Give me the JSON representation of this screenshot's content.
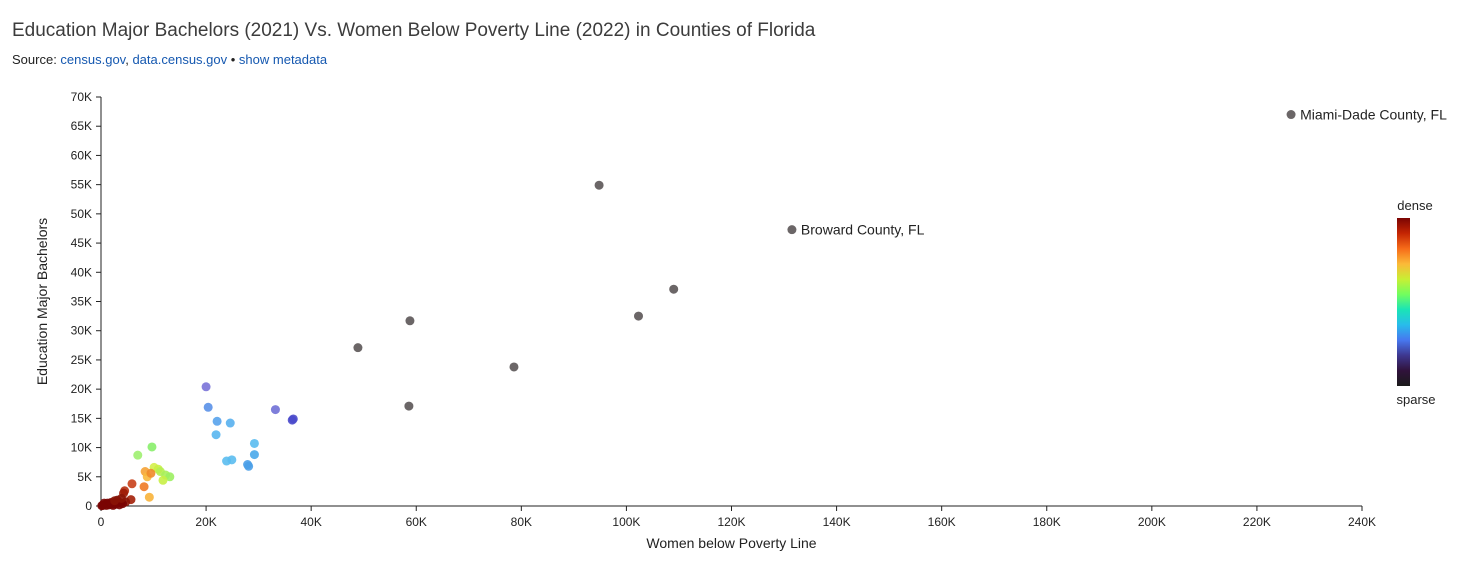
{
  "title": "Education Major Bachelors (2021) Vs. Women Below Poverty Line (2022) in Counties of Florida",
  "source": {
    "prefix": "Source: ",
    "link1": "census.gov",
    "sep1": ", ",
    "link2": "data.census.gov",
    "sep2": " • ",
    "link3": "show metadata"
  },
  "chart_data": {
    "type": "scatter",
    "xlabel": "Women below Poverty Line",
    "ylabel": "Education Major Bachelors",
    "xlim": [
      0,
      240000
    ],
    "ylim": [
      0,
      70000
    ],
    "x_ticks": [
      0,
      20000,
      40000,
      60000,
      80000,
      100000,
      120000,
      140000,
      160000,
      180000,
      200000,
      220000,
      240000
    ],
    "x_tick_labels": [
      "0",
      "20K",
      "40K",
      "60K",
      "80K",
      "100K",
      "120K",
      "140K",
      "160K",
      "180K",
      "200K",
      "220K",
      "240K"
    ],
    "y_ticks": [
      0,
      5000,
      10000,
      15000,
      20000,
      25000,
      30000,
      35000,
      40000,
      45000,
      50000,
      55000,
      60000,
      65000,
      70000
    ],
    "y_tick_labels": [
      "0",
      "5K",
      "10K",
      "15K",
      "20K",
      "25K",
      "30K",
      "35K",
      "40K",
      "45K",
      "50K",
      "55K",
      "60K",
      "65K",
      "70K"
    ],
    "grid": false,
    "legend": {
      "type": "colorbar",
      "placement": "right",
      "top_label": "dense",
      "bottom_label": "sparse",
      "colors": [
        "#7a0403",
        "#c42503",
        "#f66b19",
        "#fbb938",
        "#c8ef34",
        "#72fe5e",
        "#1ae4b6",
        "#28bceb",
        "#4777ef",
        "#3e378f",
        "#30123b",
        "#1a1a1a"
      ]
    },
    "annotations": [
      {
        "x": 226500,
        "y": 67000,
        "text": "Miami-Dade County, FL"
      },
      {
        "x": 131500,
        "y": 47300,
        "text": "Broward County, FL"
      }
    ],
    "points": [
      {
        "x": 226500,
        "y": 67000,
        "color": "#5b5556"
      },
      {
        "x": 131500,
        "y": 47300,
        "color": "#5b5556"
      },
      {
        "x": 94800,
        "y": 54900,
        "color": "#5b5556"
      },
      {
        "x": 109000,
        "y": 37100,
        "color": "#5b5556"
      },
      {
        "x": 102300,
        "y": 32500,
        "color": "#5b5556"
      },
      {
        "x": 58800,
        "y": 31700,
        "color": "#5b5556"
      },
      {
        "x": 48900,
        "y": 27100,
        "color": "#5b5556"
      },
      {
        "x": 78600,
        "y": 23800,
        "color": "#5b5556"
      },
      {
        "x": 58600,
        "y": 17100,
        "color": "#5b5556"
      },
      {
        "x": 33200,
        "y": 16500,
        "color": "#7070d6"
      },
      {
        "x": 36600,
        "y": 14900,
        "color": "#4a4acb"
      },
      {
        "x": 36400,
        "y": 14700,
        "color": "#4a4acb"
      },
      {
        "x": 20000,
        "y": 20400,
        "color": "#7a73d8"
      },
      {
        "x": 20400,
        "y": 16900,
        "color": "#5a91e8"
      },
      {
        "x": 22100,
        "y": 14500,
        "color": "#58a3ec"
      },
      {
        "x": 24600,
        "y": 14200,
        "color": "#58b0ee"
      },
      {
        "x": 21900,
        "y": 12200,
        "color": "#58b6ef"
      },
      {
        "x": 29200,
        "y": 10700,
        "color": "#5bbdf0"
      },
      {
        "x": 29200,
        "y": 8800,
        "color": "#4aa8ea"
      },
      {
        "x": 24900,
        "y": 7900,
        "color": "#5bbdf0"
      },
      {
        "x": 23900,
        "y": 7700,
        "color": "#5bbdf0"
      },
      {
        "x": 27900,
        "y": 7100,
        "color": "#4a9ee8"
      },
      {
        "x": 28100,
        "y": 6800,
        "color": "#4a9ee8"
      },
      {
        "x": 9700,
        "y": 10100,
        "color": "#88ee6a"
      },
      {
        "x": 7000,
        "y": 8700,
        "color": "#9ef070"
      },
      {
        "x": 10100,
        "y": 6600,
        "color": "#d4f04a"
      },
      {
        "x": 10900,
        "y": 6300,
        "color": "#c9ef45"
      },
      {
        "x": 11300,
        "y": 5900,
        "color": "#b6ee52"
      },
      {
        "x": 12300,
        "y": 5300,
        "color": "#a8ef5a"
      },
      {
        "x": 13100,
        "y": 5000,
        "color": "#9cef62"
      },
      {
        "x": 11800,
        "y": 4400,
        "color": "#c8ef45"
      },
      {
        "x": 8400,
        "y": 5900,
        "color": "#f5a235"
      },
      {
        "x": 8800,
        "y": 5000,
        "color": "#f8b83c"
      },
      {
        "x": 9500,
        "y": 5600,
        "color": "#f08a2a"
      },
      {
        "x": 8200,
        "y": 3300,
        "color": "#f07a25"
      },
      {
        "x": 9200,
        "y": 1500,
        "color": "#f8b23a"
      },
      {
        "x": 5900,
        "y": 3800,
        "color": "#c8401a"
      },
      {
        "x": 4500,
        "y": 2600,
        "color": "#b52f10"
      },
      {
        "x": 4300,
        "y": 2200,
        "color": "#9c1c08"
      },
      {
        "x": 5700,
        "y": 1100,
        "color": "#a32008"
      },
      {
        "x": 3100,
        "y": 1000,
        "color": "#7a0e05"
      },
      {
        "x": 4700,
        "y": 700,
        "color": "#8a1405"
      },
      {
        "x": 2500,
        "y": 600,
        "color": "#7a0403"
      },
      {
        "x": 3800,
        "y": 500,
        "color": "#7a0403"
      },
      {
        "x": 1800,
        "y": 400,
        "color": "#7a0403"
      },
      {
        "x": 1200,
        "y": 500,
        "color": "#7a0403"
      },
      {
        "x": 800,
        "y": 300,
        "color": "#7a0403"
      },
      {
        "x": 500,
        "y": 200,
        "color": "#7a0403"
      },
      {
        "x": 300,
        "y": 100,
        "color": "#7a0403"
      },
      {
        "x": 1500,
        "y": 200,
        "color": "#7a0403"
      },
      {
        "x": 2100,
        "y": 300,
        "color": "#7a0403"
      },
      {
        "x": 2800,
        "y": 300,
        "color": "#7a0403"
      },
      {
        "x": 3300,
        "y": 700,
        "color": "#7a0403"
      },
      {
        "x": 1000,
        "y": 100,
        "color": "#7a0403"
      },
      {
        "x": 600,
        "y": 500,
        "color": "#7a0403"
      },
      {
        "x": 2300,
        "y": 100,
        "color": "#7a0403"
      },
      {
        "x": 3500,
        "y": 200,
        "color": "#7a0403"
      },
      {
        "x": 4100,
        "y": 400,
        "color": "#7a0403"
      },
      {
        "x": 1900,
        "y": 600,
        "color": "#7a0403"
      },
      {
        "x": 2600,
        "y": 900,
        "color": "#8a1405"
      },
      {
        "x": 3900,
        "y": 1300,
        "color": "#8a1405"
      },
      {
        "x": 150,
        "y": 50,
        "color": "#7a0403"
      }
    ]
  }
}
